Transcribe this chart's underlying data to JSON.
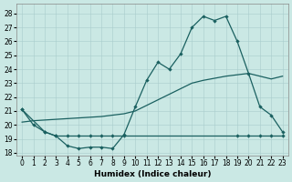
{
  "xlabel": "Humidex (Indice chaleur)",
  "xlim": [
    -0.5,
    23.5
  ],
  "ylim": [
    17.8,
    28.7
  ],
  "yticks": [
    18,
    19,
    20,
    21,
    22,
    23,
    24,
    25,
    26,
    27,
    28
  ],
  "xticks": [
    0,
    1,
    2,
    3,
    4,
    5,
    6,
    7,
    8,
    9,
    10,
    11,
    12,
    13,
    14,
    15,
    16,
    17,
    18,
    19,
    20,
    21,
    22,
    23
  ],
  "bg_color": "#cae8e4",
  "grid_color": "#a8cccc",
  "line_color": "#1a6060",
  "line1_x": [
    0,
    1,
    2,
    3,
    4,
    5,
    6,
    7,
    8,
    9,
    10,
    11,
    12,
    13,
    14,
    15,
    16,
    17,
    18,
    19,
    20,
    21,
    22,
    23
  ],
  "line1_y": [
    21.1,
    20.0,
    19.5,
    19.2,
    18.5,
    18.3,
    18.4,
    18.4,
    18.3,
    19.3,
    21.3,
    23.2,
    24.5,
    24.0,
    25.1,
    27.0,
    27.8,
    27.5,
    27.8,
    26.0,
    23.7,
    21.3,
    20.7,
    19.5
  ],
  "line2_x": [
    0,
    2,
    3,
    4,
    5,
    6,
    7,
    8,
    9,
    19,
    20,
    21,
    22,
    23
  ],
  "line2_y": [
    21.1,
    19.5,
    19.2,
    19.2,
    19.2,
    19.2,
    19.2,
    19.2,
    19.2,
    19.2,
    19.2,
    19.2,
    19.2,
    19.2
  ],
  "line3_x": [
    0,
    1,
    2,
    3,
    4,
    5,
    6,
    7,
    8,
    9,
    10,
    11,
    12,
    13,
    14,
    15,
    16,
    17,
    18,
    19,
    20,
    21,
    22,
    23
  ],
  "line3_y": [
    20.2,
    20.3,
    20.35,
    20.4,
    20.45,
    20.5,
    20.55,
    20.6,
    20.7,
    20.8,
    21.0,
    21.4,
    21.8,
    22.2,
    22.6,
    23.0,
    23.2,
    23.35,
    23.5,
    23.6,
    23.7,
    23.5,
    23.3,
    23.5
  ]
}
